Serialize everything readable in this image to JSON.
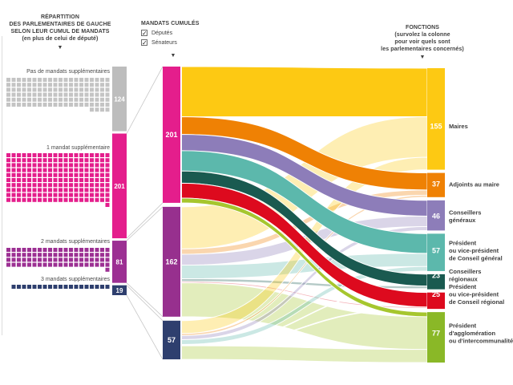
{
  "icons": {
    "arrow_down": "▼",
    "check": "✓"
  },
  "left_header": {
    "lines": [
      "RÉPARTITION",
      "DES PARLEMENTAIRES DE GAUCHE",
      "SELON LEUR CUMUL DE MANDATS",
      "(en plus de celui de député)"
    ]
  },
  "middle_header": {
    "title": "MANDATS CUMULÉS",
    "checkboxes": [
      {
        "label": "Députés",
        "checked": true
      },
      {
        "label": "Sénateurs",
        "checked": true
      }
    ]
  },
  "right_header": {
    "lines": [
      "FONCTIONS",
      "(survolez la colonne",
      "pour voir quels sont",
      "les parlementaires concernés)"
    ]
  },
  "chart_data": {
    "type": "sankey",
    "title": "Répartition des parlementaires de gauche selon leur cumul de mandats",
    "left_categories": [
      {
        "label": "Pas de mandats supplémentaires",
        "value": 124,
        "color": "#c4c4c4",
        "bar_color": "#bdbdbd"
      },
      {
        "label": "1 mandat supplémentaire",
        "value": 201,
        "color": "#e41e8c"
      },
      {
        "label": "2 mandats supplémentaires",
        "value": 81,
        "color": "#9c3093"
      },
      {
        "label": "3 mandats supplémentaires",
        "value": 19,
        "color": "#2e3f6e"
      }
    ],
    "sources": [
      {
        "label": "201",
        "value": 201,
        "color": "#e41e8c"
      },
      {
        "label": "162",
        "value": 162,
        "color": "#97308e"
      },
      {
        "label": "57",
        "value": 57,
        "color": "#2e3f6e"
      }
    ],
    "destinations": [
      {
        "value": 155,
        "label_lines": [
          "Maires"
        ],
        "color": "#fdc913"
      },
      {
        "value": 37,
        "label_lines": [
          "Adjoints au maire"
        ],
        "color": "#ef8104"
      },
      {
        "value": 46,
        "label_lines": [
          "Conseillers",
          "généraux"
        ],
        "color": "#8d7db9"
      },
      {
        "value": 57,
        "label_lines": [
          "Président",
          "ou vice-président",
          "de Conseil général"
        ],
        "color": "#5cb8ac"
      },
      {
        "value": 23,
        "label_lines": [
          "Conseillers",
          "régionaux"
        ],
        "color": "#1a5a50"
      },
      {
        "value": 25,
        "label_lines": [
          "Président",
          "ou vice-président",
          "de Conseil régional"
        ],
        "color": "#dd0a1e"
      },
      {
        "value": 77,
        "label_lines": [
          "Président",
          "d'agglomération",
          "ou d'intercommunalité"
        ],
        "color": "#a6c62e",
        "bar_color": "#8ab827"
      }
    ],
    "flows": [
      [
        74,
        26,
        24,
        30,
        18,
        22,
        7
      ],
      [
        62,
        8,
        16,
        20,
        4,
        2,
        50
      ],
      [
        19,
        3,
        6,
        7,
        1,
        1,
        20
      ]
    ],
    "highlighted_source": 0,
    "faded_opacity": 0.32
  }
}
